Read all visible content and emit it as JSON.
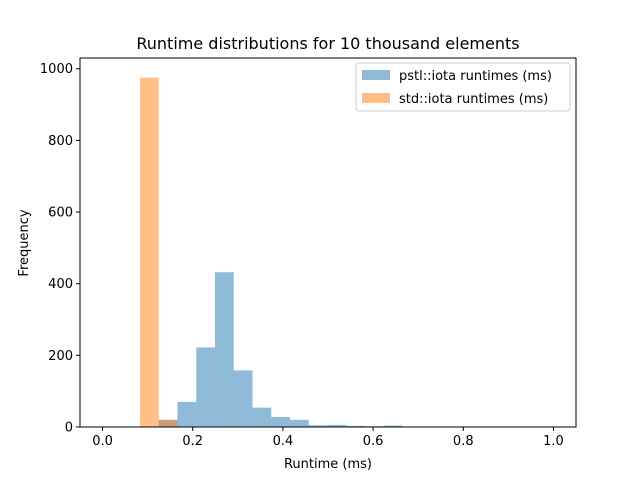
{
  "chart_data": {
    "type": "histogram",
    "title": "Runtime distributions for 10 thousand elements",
    "xlabel": "Runtime (ms)",
    "ylabel": "Frequency",
    "xlim": [
      -0.05,
      1.05
    ],
    "ylim": [
      0,
      1030
    ],
    "xticks": [
      0.0,
      0.2,
      0.4,
      0.6,
      0.8,
      1.0
    ],
    "xtick_labels": [
      "0.0",
      "0.2",
      "0.4",
      "0.6",
      "0.8",
      "1.0"
    ],
    "yticks": [
      0,
      200,
      400,
      600,
      800,
      1000
    ],
    "ytick_labels": [
      "0",
      "200",
      "400",
      "600",
      "800",
      "1000"
    ],
    "bin_width": 0.0416,
    "legend_position": "top-right",
    "series": [
      {
        "name": "pstl::iota runtimes (ms)",
        "color": "#1f77b4",
        "opacity": 0.5,
        "bin_starts": [
          0.083,
          0.1246,
          0.1662,
          0.2078,
          0.2494,
          0.291,
          0.3326,
          0.3742,
          0.4158,
          0.4574,
          0.499,
          0.5406,
          0.5822,
          0.6238
        ],
        "values": [
          0,
          20,
          70,
          222,
          432,
          158,
          54,
          28,
          20,
          5,
          6,
          3,
          2,
          4
        ]
      },
      {
        "name": "std::iota runtimes (ms)",
        "color": "#ff7f0e",
        "opacity": 0.5,
        "bin_starts": [
          0.083,
          0.1246
        ],
        "values": [
          975,
          20
        ]
      }
    ]
  }
}
